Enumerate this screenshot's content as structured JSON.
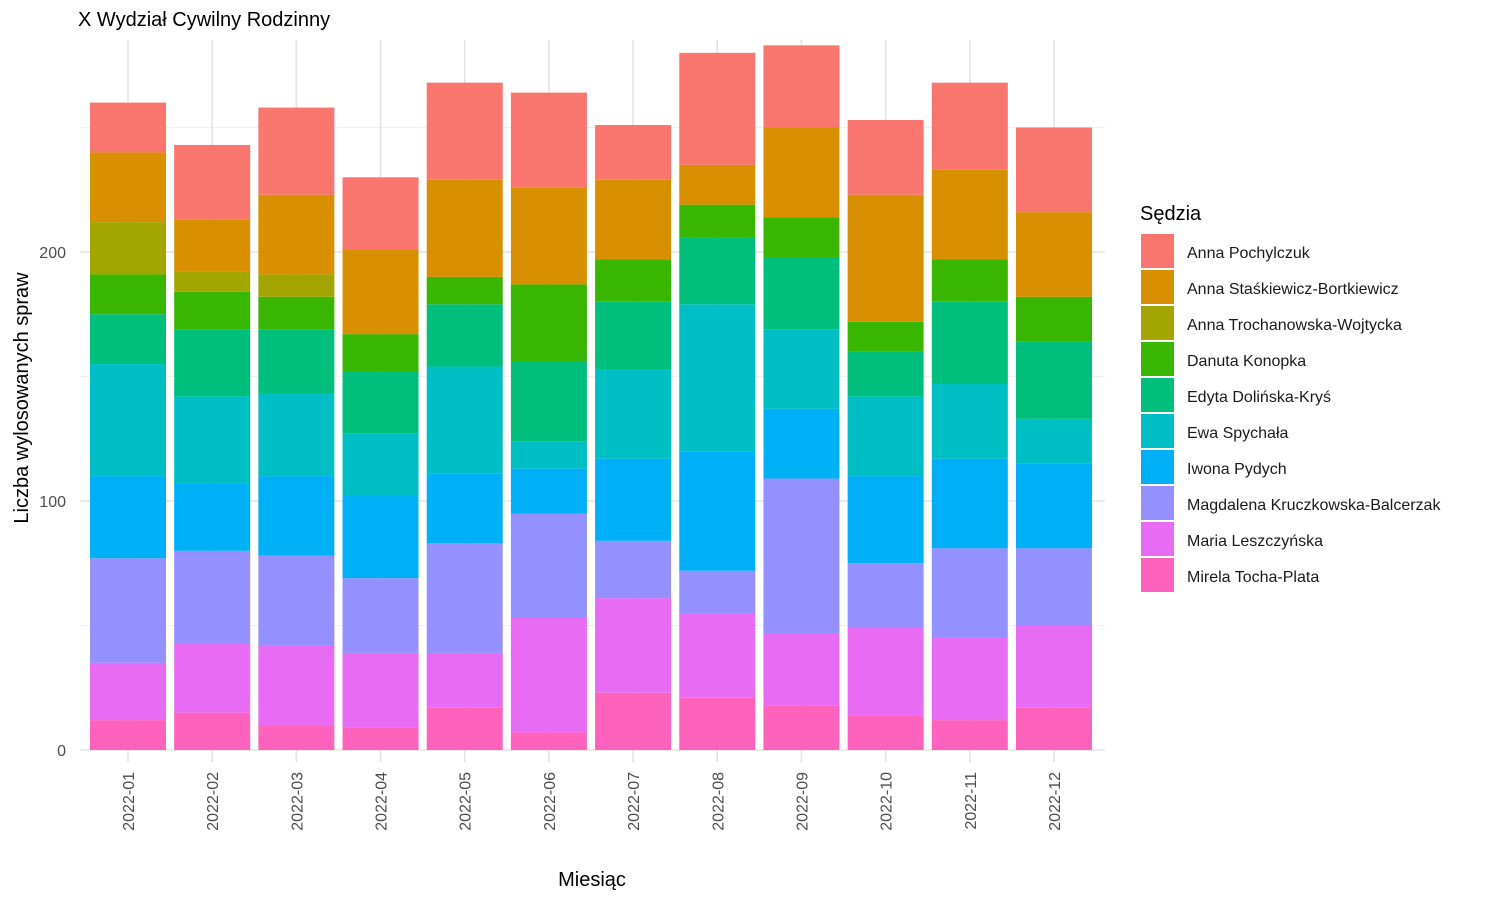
{
  "chart_data": {
    "type": "bar",
    "stacked": true,
    "title": "X Wydział Cywilny Rodzinny",
    "xlabel": "Miesiąc",
    "ylabel": "Liczba wylosowanych spraw",
    "ylim": [
      0,
      285
    ],
    "yticks": [
      0,
      100,
      200
    ],
    "grid": true,
    "legend_title": "Sędzia",
    "legend_position": "right",
    "categories": [
      "2022-01",
      "2022-02",
      "2022-03",
      "2022-04",
      "2022-05",
      "2022-06",
      "2022-07",
      "2022-08",
      "2022-09",
      "2022-10",
      "2022-11",
      "2022-12"
    ],
    "series": [
      {
        "name": "Anna Pochylczuk",
        "color": "#F8766D",
        "values": [
          20,
          30,
          35,
          29,
          39,
          38,
          22,
          45,
          33,
          30,
          35,
          34
        ]
      },
      {
        "name": "Anna Staśkiewicz-Bortkiewicz",
        "color": "#D89000",
        "values": [
          28,
          21,
          32,
          34,
          39,
          39,
          32,
          16,
          36,
          51,
          36,
          34
        ]
      },
      {
        "name": "Anna Trochanowska-Wojtycka",
        "color": "#A3A500",
        "values": [
          21,
          8,
          9,
          0,
          0,
          0,
          0,
          0,
          0,
          0,
          0,
          0
        ]
      },
      {
        "name": "Danuta Konopka",
        "color": "#39B600",
        "values": [
          16,
          15,
          13,
          15,
          11,
          31,
          17,
          13,
          16,
          12,
          17,
          18
        ]
      },
      {
        "name": "Edyta Dolińska-Kryś",
        "color": "#00BF7D",
        "values": [
          20,
          27,
          26,
          25,
          25,
          32,
          27,
          27,
          29,
          18,
          33,
          31
        ]
      },
      {
        "name": "Ewa Spychała",
        "color": "#00BFC4",
        "values": [
          45,
          35,
          33,
          25,
          43,
          11,
          36,
          59,
          32,
          32,
          30,
          18
        ]
      },
      {
        "name": "Iwona Pydych",
        "color": "#00B0F6",
        "values": [
          33,
          27,
          32,
          33,
          28,
          18,
          33,
          48,
          28,
          35,
          36,
          34
        ]
      },
      {
        "name": "Magdalena Kruczkowska-Balcerzak",
        "color": "#9590FF",
        "values": [
          42,
          37,
          36,
          30,
          44,
          42,
          23,
          17,
          62,
          26,
          36,
          31
        ]
      },
      {
        "name": "Maria Leszczyńska",
        "color": "#E76BF3",
        "values": [
          23,
          28,
          32,
          30,
          22,
          46,
          38,
          34,
          29,
          35,
          33,
          33
        ]
      },
      {
        "name": "Mirela Tocha-Plata",
        "color": "#FF62BC",
        "values": [
          12,
          15,
          10,
          9,
          17,
          7,
          23,
          21,
          18,
          14,
          12,
          17
        ]
      }
    ]
  }
}
